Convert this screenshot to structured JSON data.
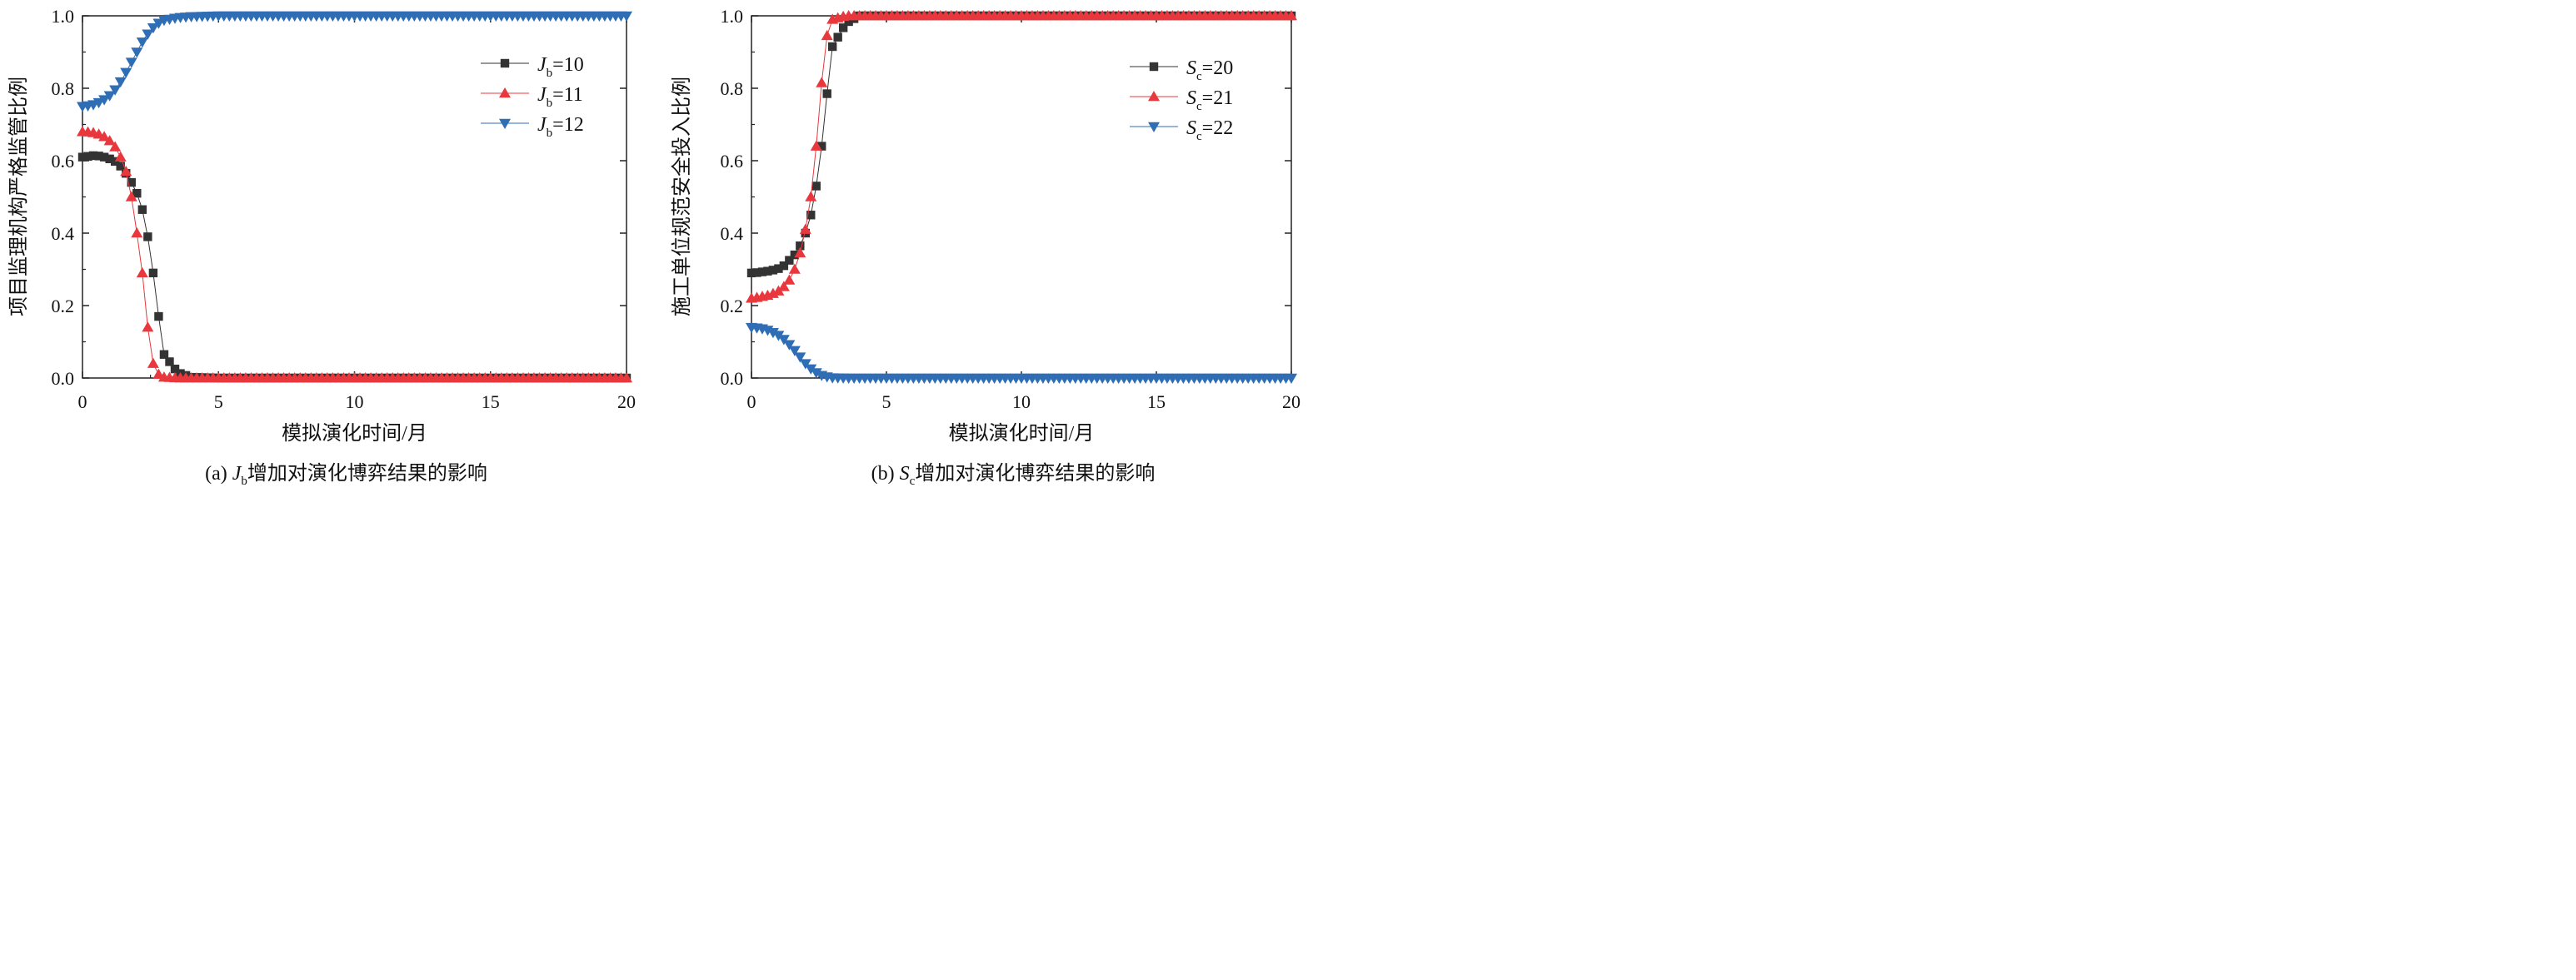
{
  "chart_data": [
    {
      "type": "line",
      "caption_prefix": "(a) ",
      "caption_var": "J",
      "caption_sub": "b",
      "caption_rest": "增加对演化博弈结果的影响",
      "xlabel": "模拟演化时间/月",
      "ylabel": "项目监理机构严格监管比例",
      "xlim": [
        0,
        20
      ],
      "ylim": [
        0,
        1.0
      ],
      "xticks": [
        "0",
        "5",
        "10",
        "15",
        "20"
      ],
      "yticks": [
        "0.0",
        "0.2",
        "0.4",
        "0.6",
        "0.8",
        "1.0"
      ],
      "legend_position": "top-right",
      "series": [
        {
          "name": "Jb=10",
          "var": "J",
          "sub": "b",
          "val": "=10",
          "color": "#333333",
          "marker": "square",
          "x": [
            0,
            0.2,
            0.4,
            0.6,
            0.8,
            1.0,
            1.2,
            1.4,
            1.6,
            1.8,
            2.0,
            2.2,
            2.4,
            2.6,
            2.8,
            3.0,
            3.5,
            4,
            5,
            6,
            8,
            10,
            12,
            14,
            16,
            18,
            20
          ],
          "y": [
            0.61,
            0.612,
            0.614,
            0.613,
            0.61,
            0.605,
            0.598,
            0.585,
            0.565,
            0.54,
            0.51,
            0.465,
            0.39,
            0.29,
            0.17,
            0.065,
            0.015,
            0.002,
            0,
            0,
            0,
            0,
            0,
            0,
            0,
            0,
            0
          ]
        },
        {
          "name": "Jb=11",
          "var": "J",
          "sub": "b",
          "val": "=11",
          "color": "#e8383d",
          "marker": "triangle-up",
          "x": [
            0,
            0.2,
            0.4,
            0.6,
            0.8,
            1.0,
            1.2,
            1.4,
            1.6,
            1.8,
            2.0,
            2.2,
            2.4,
            2.6,
            2.8,
            3.0,
            3.5,
            4,
            5,
            6,
            8,
            10,
            12,
            14,
            16,
            18,
            20
          ],
          "y": [
            0.68,
            0.679,
            0.677,
            0.673,
            0.666,
            0.655,
            0.638,
            0.61,
            0.57,
            0.5,
            0.4,
            0.29,
            0.14,
            0.04,
            0.01,
            0.002,
            0,
            0,
            0,
            0,
            0,
            0,
            0,
            0,
            0,
            0,
            0
          ]
        },
        {
          "name": "Jb=12",
          "var": "J",
          "sub": "b",
          "val": "=12",
          "color": "#2f6db5",
          "marker": "triangle-down",
          "x": [
            0,
            0.25,
            0.5,
            0.75,
            1.0,
            1.25,
            1.5,
            1.75,
            2.0,
            2.25,
            2.5,
            2.75,
            3.0,
            3.5,
            4.0,
            4.5,
            5,
            6,
            8,
            10,
            12,
            14,
            16,
            18,
            20
          ],
          "y": [
            0.75,
            0.752,
            0.757,
            0.766,
            0.78,
            0.8,
            0.83,
            0.865,
            0.9,
            0.935,
            0.96,
            0.978,
            0.988,
            0.995,
            0.998,
            0.999,
            1.0,
            1.0,
            1.0,
            1.0,
            1.0,
            1.0,
            1.0,
            1.0,
            1.0
          ]
        }
      ]
    },
    {
      "type": "line",
      "caption_prefix": "(b) ",
      "caption_var": "S",
      "caption_sub": "c",
      "caption_rest": "增加对演化博弈结果的影响",
      "xlabel": "模拟演化时间/月",
      "ylabel": "施工单位规范安全投入比例",
      "xlim": [
        0,
        20
      ],
      "ylim": [
        0,
        1.0
      ],
      "xticks": [
        "0",
        "5",
        "10",
        "15",
        "20"
      ],
      "yticks": [
        "0.0",
        "0.2",
        "0.4",
        "0.6",
        "0.8",
        "1.0"
      ],
      "legend_position": "top-right",
      "series": [
        {
          "name": "Sc=20",
          "var": "S",
          "sub": "c",
          "val": "=20",
          "color": "#333333",
          "marker": "square",
          "x": [
            0,
            0.2,
            0.4,
            0.6,
            0.8,
            1.0,
            1.2,
            1.4,
            1.6,
            1.8,
            2.0,
            2.2,
            2.4,
            2.6,
            2.8,
            3.0,
            3.5,
            4,
            5,
            6,
            8,
            10,
            12,
            14,
            16,
            18,
            20
          ],
          "y": [
            0.29,
            0.291,
            0.293,
            0.295,
            0.298,
            0.302,
            0.31,
            0.325,
            0.34,
            0.365,
            0.4,
            0.45,
            0.53,
            0.64,
            0.785,
            0.915,
            0.98,
            1.0,
            1.0,
            1.0,
            1.0,
            1.0,
            1.0,
            1.0,
            1.0,
            1.0,
            1.0
          ]
        },
        {
          "name": "Sc=21",
          "var": "S",
          "sub": "c",
          "val": "=21",
          "color": "#e8383d",
          "marker": "triangle-up",
          "x": [
            0,
            0.2,
            0.4,
            0.6,
            0.8,
            1.0,
            1.2,
            1.4,
            1.6,
            1.8,
            2.0,
            2.2,
            2.4,
            2.6,
            2.8,
            3.0,
            3.5,
            4,
            5,
            6,
            8,
            10,
            12,
            14,
            16,
            18,
            20
          ],
          "y": [
            0.22,
            0.222,
            0.225,
            0.228,
            0.233,
            0.24,
            0.252,
            0.27,
            0.3,
            0.345,
            0.41,
            0.5,
            0.64,
            0.815,
            0.945,
            0.99,
            1.0,
            1.0,
            1.0,
            1.0,
            1.0,
            1.0,
            1.0,
            1.0,
            1.0,
            1.0,
            1.0
          ]
        },
        {
          "name": "Sc=22",
          "var": "S",
          "sub": "c",
          "val": "=22",
          "color": "#2f6db5",
          "marker": "triangle-down",
          "x": [
            0,
            0.25,
            0.5,
            0.75,
            1.0,
            1.25,
            1.5,
            1.75,
            2.0,
            2.25,
            2.5,
            2.75,
            3.0,
            3.5,
            4.0,
            4.5,
            5,
            6,
            8,
            10,
            12,
            14,
            16,
            18,
            20
          ],
          "y": [
            0.14,
            0.138,
            0.135,
            0.128,
            0.118,
            0.104,
            0.085,
            0.063,
            0.04,
            0.022,
            0.01,
            0.004,
            0.001,
            0,
            0,
            0,
            0,
            0,
            0,
            0,
            0,
            0,
            0,
            0,
            0
          ]
        }
      ]
    }
  ]
}
